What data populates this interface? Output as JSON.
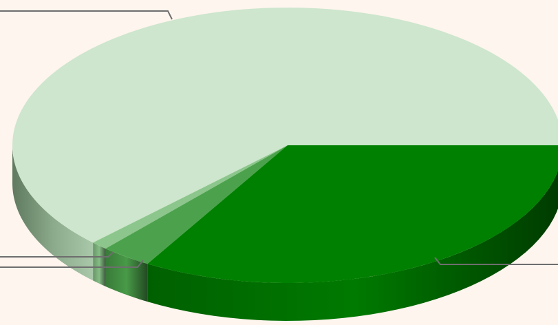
{
  "chart_data": {
    "type": "pie",
    "style": "3d",
    "title": "",
    "slices": [
      {
        "value": 62.5,
        "color": "#cde6cd"
      },
      {
        "value": 1.0,
        "color": "#8cc68c"
      },
      {
        "value": 3.0,
        "color": "#4ca24c"
      },
      {
        "value": 33.5,
        "color": "#008000"
      }
    ],
    "labels_visible": false,
    "leader_lines": true,
    "background": "#fef5ee",
    "leader_color": "#6e6e6e"
  }
}
